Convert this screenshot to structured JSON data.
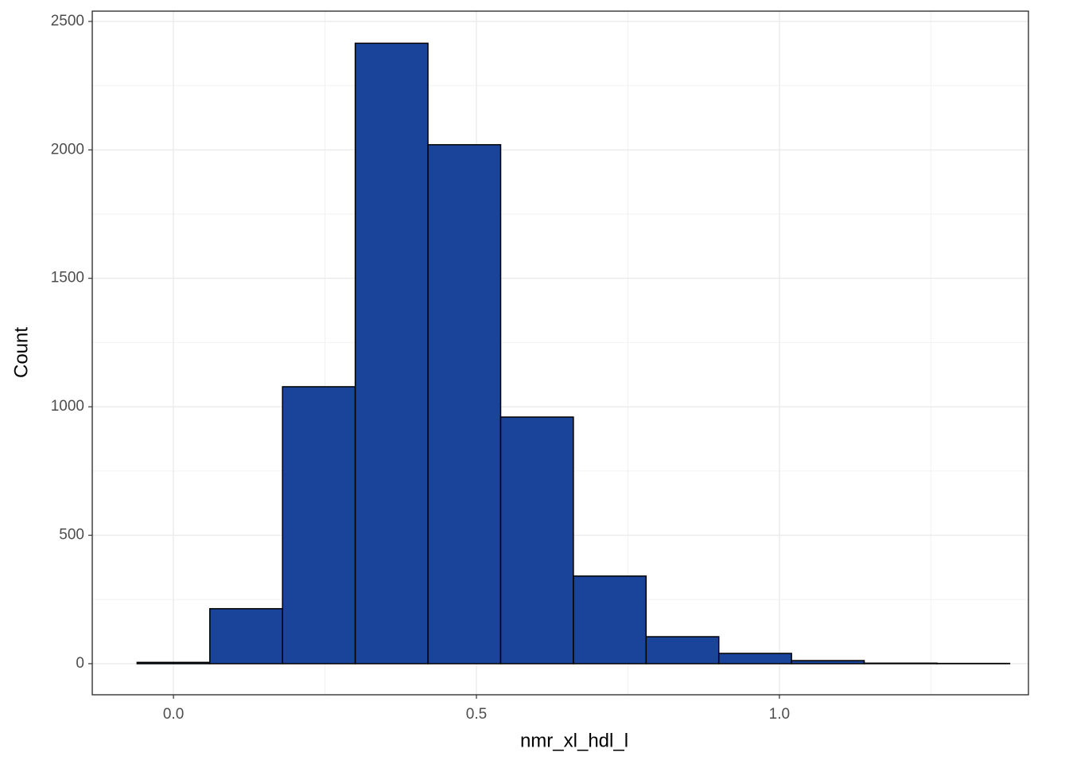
{
  "chart_data": {
    "type": "histogram",
    "xlabel": "nmr_xl_hdl_l",
    "ylabel": "Count",
    "bins": [
      -0.06,
      0.06,
      0.18,
      0.3,
      0.42,
      0.54,
      0.66,
      0.78,
      0.9,
      1.02,
      1.14,
      1.26,
      1.38
    ],
    "counts": [
      5,
      214,
      1078,
      2415,
      2020,
      960,
      341,
      105,
      40,
      12,
      2,
      1
    ],
    "color": "#1a4499",
    "edgecolor": "#000000",
    "xlim": [
      -0.134,
      1.411
    ],
    "ylim": [
      -121,
      2540
    ],
    "xticks": [
      {
        "value": 0,
        "label": "0.0"
      },
      0.5,
      {
        "value": 1,
        "label": "1.0"
      }
    ],
    "yticks": [
      0,
      500,
      1000,
      1500,
      2000,
      2500
    ],
    "grid": true
  }
}
